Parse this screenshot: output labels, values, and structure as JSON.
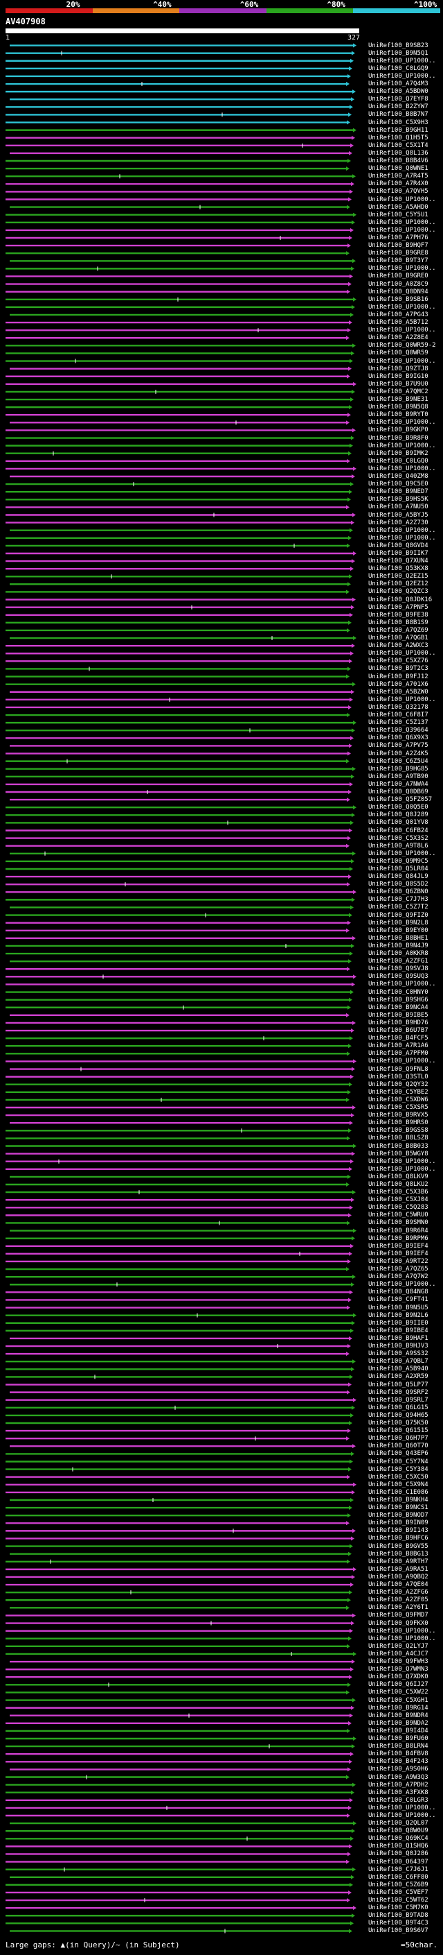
{
  "legend": {
    "items": [
      {
        "label": "20%",
        "color": "#d41b1b"
      },
      {
        "label": "^40%",
        "color": "#e37f1d"
      },
      {
        "label": "^60%",
        "color": "#9a2fb8"
      },
      {
        "label": "^80%",
        "color": "#2aa51e"
      },
      {
        "label": "^100%",
        "color": "#2ec4d6"
      }
    ]
  },
  "query": {
    "name": "AV407908",
    "start": "1",
    "end": "327"
  },
  "hit_labels": [
    "UniRef100_B9SB23",
    "UniRef100_B9N5Q1",
    "UniRef100_UP1000..",
    "UniRef100_C0LGQ9",
    "UniRef100_UP1000..",
    "UniRef100_A7Q4M3",
    "UniRef100_A5BDW0",
    "UniRef100_Q7EYF8",
    "UniRef100_B2ZYW7",
    "UniRef100_B8B7N7",
    "UniRef100_C5X9H3",
    "UniRef100_B9GH11",
    "UniRef100_Q1H5T5",
    "UniRef100_C5X1T4",
    "UniRef100_Q8L136",
    "UniRef100_B8B4V6",
    "UniRef100_Q0WNE1",
    "UniRef100_A7R4T5",
    "UniRef100_A7R4X0",
    "UniRef100_A7QVH5",
    "UniRef100_UP1000..",
    "UniRef100_A5AHD0",
    "UniRef100_C5Y5U1",
    "UniRef100_UP1000..",
    "UniRef100_UP1000..",
    "UniRef100_A7PH76",
    "UniRef100_B9HQF7",
    "UniRef100_B9GRE8",
    "UniRef100_B9T3Y7",
    "UniRef100_UP1000..",
    "UniRef100_B9GRE0",
    "UniRef100_A0Z8C9",
    "UniRef100_Q0DN94",
    "UniRef100_B9SB16",
    "UniRef100_UP1000..",
    "UniRef100_A7PG43",
    "UniRef100_A5B712",
    "UniRef100_UP1000..",
    "UniRef100_A2Z8E4",
    "UniRef100_Q0WR59-2",
    "UniRef100_Q0WR59",
    "UniRef100_UP1000..",
    "UniRef100_Q9ZTJ8",
    "UniRef100_B9IG10",
    "UniRef100_B7U9U0",
    "UniRef100_A7QMC2",
    "UniRef100_B9NE31",
    "UniRef100_B9N5Q8",
    "UniRef100_B9RYT0",
    "UniRef100_UP1000..",
    "UniRef100_B9GKP0",
    "UniRef100_B9R8F0",
    "UniRef100_UP1000..",
    "UniRef100_B9IMK2",
    "UniRef100_C0LGQ0",
    "UniRef100_UP1000..",
    "UniRef100_Q40ZM8",
    "UniRef100_Q9C5E0",
    "UniRef100_B9NED7",
    "UniRef100_B9HS5K",
    "UniRef100_A7NU50",
    "UniRef100_A5BYJ5",
    "UniRef100_A2Z730",
    "UniRef100_UP1000..",
    "UniRef100_UP1000..",
    "UniRef100_Q8GVD4",
    "UniRef100_B9IIK7",
    "UniRef100_Q7XUN4",
    "UniRef100_Q53KX8",
    "UniRef100_Q2EZ15",
    "UniRef100_Q2EZ12",
    "UniRef100_Q2QZC3",
    "UniRef100_Q0JDK16",
    "UniRef100_A7PNF5",
    "UniRef100_B9FE38",
    "UniRef100_B8B1S9",
    "UniRef100_A7QZ69",
    "UniRef100_A7QGB1",
    "UniRef100_A2WXC3",
    "UniRef100_UP1000..",
    "UniRef100_C5XZ76",
    "UniRef100_B9T2C3",
    "UniRef100_B9FJ12",
    "UniRef100_A701X6",
    "UniRef100_A5BZW0",
    "UniRef100_UP1000..",
    "UniRef100_Q32178",
    "UniRef100_C6F8I7",
    "UniRef100_C5Z137",
    "UniRef100_Q39664",
    "UniRef100_Q6X9X3",
    "UniRef100_A7PV75",
    "UniRef100_A2Z4K5",
    "UniRef100_C6Z5U4",
    "UniRef100_B9HG85",
    "UniRef100_A9TB90",
    "UniRef100_A7NWA4",
    "UniRef100_Q0DB69",
    "UniRef100_Q5FZ057",
    "UniRef100_Q0Q5E0",
    "UniRef100_Q0J289",
    "UniRef100_Q01YV8",
    "UniRef100_C6FB24",
    "UniRef100_C5X3S2",
    "UniRef100_A9T8L6",
    "UniRef100_UP1000..",
    "UniRef100_Q9M9C5",
    "UniRef100_Q5LR04",
    "UniRef100_Q84JL9",
    "UniRef100_Q8S5D2",
    "UniRef100_Q6ZBN0",
    "UniRef100_C7J7H3",
    "UniRef100_C5Z7T2",
    "UniRef100_Q9FIZ0",
    "UniRef100_B9N2L8",
    "UniRef100_B9EY00",
    "UniRef100_B8BHE1",
    "UniRef100_B9N4J9",
    "UniRef100_A0KKR8",
    "UniRef100_A2ZFG1",
    "UniRef100_Q9SVJ8",
    "UniRef100_Q9SUQ3",
    "UniRef100_UP1000..",
    "UniRef100_C0HNY0",
    "UniRef100_B9SHG6",
    "UniRef100_B9NCA4",
    "UniRef100_B9IBE5",
    "UniRef100_B9HD76",
    "UniRef100_B6U7B7",
    "UniRef100_B4FCF5",
    "UniRef100_A7R1A6",
    "UniRef100_A7PFM0",
    "UniRef100_UP1000..",
    "UniRef100_Q9FNL8",
    "UniRef100_Q3STL0",
    "UniRef100_Q2QY32",
    "UniRef100_C5YBE2",
    "UniRef100_C5XDW6",
    "UniRef100_C5XSR5",
    "UniRef100_B9RVX5",
    "UniRef100_B9HRS0",
    "UniRef100_B9GSS8",
    "UniRef100_B8LSZ8",
    "UniRef100_B8B033",
    "UniRef100_B5WGY8",
    "UniRef100_UP1000..",
    "UniRef100_UP1000..",
    "UniRef100_Q8LKV9",
    "UniRef100_Q8LKU2",
    "UniRef100_C5X3B6",
    "UniRef100_C5XJ04",
    "UniRef100_C5Q283",
    "UniRef100_C5WRU0",
    "UniRef100_B9SMN0",
    "UniRef100_B9R6R4",
    "UniRef100_B9RPM6",
    "UniRef100_B9IEF4",
    "UniRef100_B9IEF4",
    "UniRef100_A9RT22",
    "UniRef100_A7QZ65",
    "UniRef100_A7Q7W2",
    "UniRef100_UP1000..",
    "UniRef100_Q84NG8",
    "UniRef100_C9FT41",
    "UniRef100_B9N5U5",
    "UniRef100_B9N2L6",
    "UniRef100_B9IIE0",
    "UniRef100_B9IBE4",
    "UniRef100_B9HAF1",
    "UniRef100_B9HJV3",
    "UniRef100_A9SS32",
    "UniRef100_A7QBL7",
    "UniRef100_A5B940",
    "UniRef100_A2XR59",
    "UniRef100_Q5LP77",
    "UniRef100_Q9SRF2",
    "UniRef100_Q9SRL7",
    "UniRef100_Q6LG15",
    "UniRef100_Q94H65",
    "UniRef100_Q75K50",
    "UniRef100_Q61515",
    "UniRef100_Q6H7P7",
    "UniRef100_Q60T70",
    "UniRef100_Q43EP6",
    "UniRef100_C5Y7N4",
    "UniRef100_C5Y384",
    "UniRef100_C5XC50",
    "UniRef100_C5X9N4",
    "UniRef100_C1E086",
    "UniRef100_B9NKH4",
    "UniRef100_B9NCS1",
    "UniRef100_B9NOD7",
    "UniRef100_B9IN09",
    "UniRef100_B9I143",
    "UniRef100_B9HFC6",
    "UniRef100_B9GV55",
    "UniRef100_B8BG13",
    "UniRef100_A9RTH7",
    "UniRef100_A9RA51",
    "UniRef100_A9QBQ2",
    "UniRef100_A7QE04",
    "UniRef100_A2ZFG6",
    "UniRef100_A2ZF05",
    "UniRef100_A2Y6T1",
    "UniRef100_Q9FMD7",
    "UniRef100_Q9FKX0",
    "UniRef100_UP1000..",
    "UniRef100_UP1000..",
    "UniRef100_Q2LYJ7",
    "UniRef100_A4CJC7",
    "UniRef100_Q9FWH3",
    "UniRef100_Q7WMN3",
    "UniRef100_Q7XDK0",
    "UniRef100_Q6IJ27",
    "UniRef100_C5XW22",
    "UniRef100_C5XGH1",
    "UniRef100_B9RG14",
    "UniRef100_B9NDR4",
    "UniRef100_B9NDA2",
    "UniRef100_B9I4D4",
    "UniRef100_B9FU60",
    "UniRef100_B8LRN4",
    "UniRef100_B4FBV8",
    "UniRef100_B4F243",
    "UniRef100_A9S0H6",
    "UniRef100_A9W3Q3",
    "UniRef100_A7PDH2",
    "UniRef100_A3FXK8",
    "UniRef100_C0LGR3",
    "UniRef100_UP1000..",
    "UniRef100_UP1000..",
    "UniRef100_Q2QL07",
    "UniRef100_Q8W0U9",
    "UniRef100_Q69KC4",
    "UniRef100_Q1SHQ6",
    "UniRef100_Q0J286",
    "UniRef100_O64397",
    "UniRef100_C7J6J1",
    "UniRef100_C6FF80",
    "UniRef100_C5Z6B9",
    "UniRef100_C5VEF7",
    "UniRef100_C5WT62",
    "UniRef100_C5M7K0",
    "UniRef100_B9TAD8",
    "UniRef100_B9T4C3",
    "UniRef100_B9S6V7"
  ],
  "footer": {
    "large_gaps": "Large gaps:",
    "in_query": "(in Query)",
    "in_subject": "/~ (in Subject)",
    "scale": "=50char."
  }
}
